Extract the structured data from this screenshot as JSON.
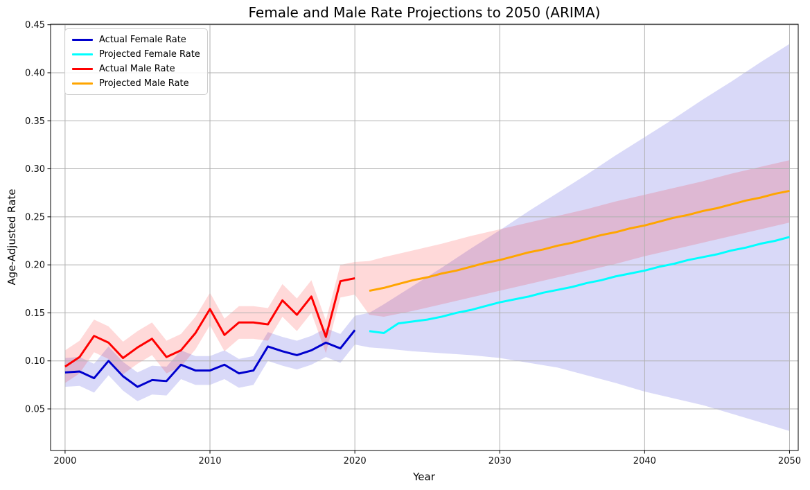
{
  "chart_data": {
    "type": "line",
    "title": "Female and Male Rate Projections to 2050 (ARIMA)",
    "xlabel": "Year",
    "ylabel": "Age-Adjusted Rate",
    "xlim": [
      1999.0,
      2050.6
    ],
    "ylim": [
      0.0067,
      0.4505
    ],
    "x_ticks": [
      2000,
      2010,
      2020,
      2030,
      2040,
      2050
    ],
    "y_ticks": [
      0.05,
      0.1,
      0.15,
      0.2,
      0.25,
      0.3,
      0.35,
      0.4,
      0.45
    ],
    "grid": true,
    "legend_position": "upper-left",
    "colors": {
      "actual_female": "#0000cd",
      "projected_female": "#00ffff",
      "actual_male": "#ff0000",
      "projected_male": "#ffa500",
      "grid": "#b0b0b0",
      "female_band": "#0000cd",
      "male_band": "#ff0000"
    },
    "series": [
      {
        "name": "Actual Female Rate",
        "color": "#0000cd",
        "x": [
          2000,
          2001,
          2002,
          2003,
          2004,
          2005,
          2006,
          2007,
          2008,
          2009,
          2010,
          2011,
          2012,
          2013,
          2014,
          2015,
          2016,
          2017,
          2018,
          2019,
          2020
        ],
        "values": [
          0.088,
          0.089,
          0.082,
          0.1,
          0.084,
          0.073,
          0.08,
          0.079,
          0.096,
          0.09,
          0.09,
          0.096,
          0.087,
          0.09,
          0.115,
          0.11,
          0.106,
          0.111,
          0.119,
          0.113,
          0.132
        ]
      },
      {
        "name": "Projected Female Rate",
        "color": "#00ffff",
        "x": [
          2021,
          2022,
          2023,
          2024,
          2025,
          2026,
          2027,
          2028,
          2029,
          2030,
          2031,
          2032,
          2033,
          2034,
          2035,
          2036,
          2037,
          2038,
          2039,
          2040,
          2041,
          2042,
          2043,
          2044,
          2045,
          2046,
          2047,
          2048,
          2049,
          2050
        ],
        "values": [
          0.131,
          0.129,
          0.139,
          0.141,
          0.143,
          0.146,
          0.15,
          0.153,
          0.157,
          0.161,
          0.164,
          0.167,
          0.171,
          0.174,
          0.177,
          0.181,
          0.184,
          0.188,
          0.191,
          0.194,
          0.198,
          0.201,
          0.205,
          0.208,
          0.211,
          0.215,
          0.218,
          0.222,
          0.225,
          0.229
        ]
      },
      {
        "name": "Actual Male Rate",
        "color": "#ff0000",
        "x": [
          2000,
          2001,
          2002,
          2003,
          2004,
          2005,
          2006,
          2007,
          2008,
          2009,
          2010,
          2011,
          2012,
          2013,
          2014,
          2015,
          2016,
          2017,
          2018,
          2019,
          2020
        ],
        "values": [
          0.094,
          0.104,
          0.126,
          0.119,
          0.103,
          0.114,
          0.123,
          0.104,
          0.111,
          0.129,
          0.154,
          0.127,
          0.14,
          0.14,
          0.138,
          0.163,
          0.148,
          0.167,
          0.125,
          0.183,
          0.186
        ]
      },
      {
        "name": "Projected Male Rate",
        "color": "#ffa500",
        "x": [
          2021,
          2022,
          2023,
          2024,
          2025,
          2026,
          2027,
          2028,
          2029,
          2030,
          2031,
          2032,
          2033,
          2034,
          2035,
          2036,
          2037,
          2038,
          2039,
          2040,
          2041,
          2042,
          2043,
          2044,
          2045,
          2046,
          2047,
          2048,
          2049,
          2050
        ],
        "values": [
          0.173,
          0.176,
          0.18,
          0.184,
          0.187,
          0.191,
          0.194,
          0.198,
          0.202,
          0.205,
          0.209,
          0.213,
          0.216,
          0.22,
          0.223,
          0.227,
          0.231,
          0.234,
          0.238,
          0.241,
          0.245,
          0.249,
          0.252,
          0.256,
          0.259,
          0.263,
          0.267,
          0.27,
          0.274,
          0.277
        ]
      }
    ],
    "bands": [
      {
        "name": "actual-female-ci",
        "series": 0,
        "color": "#0000cd",
        "half_width": 0.015
      },
      {
        "name": "actual-male-ci",
        "series": 2,
        "color": "#ff0000",
        "half_width": 0.017
      },
      {
        "name": "projected-female-ci",
        "color": "#0000cd",
        "x": [
          2020,
          2021,
          2022,
          2024,
          2026,
          2028,
          2030,
          2032,
          2034,
          2036,
          2038,
          2040,
          2042,
          2044,
          2046,
          2048,
          2050
        ],
        "lower": [
          0.117,
          0.114,
          0.113,
          0.11,
          0.108,
          0.106,
          0.103,
          0.098,
          0.093,
          0.085,
          0.077,
          0.068,
          0.061,
          0.054,
          0.045,
          0.036,
          0.027
        ],
        "upper": [
          0.147,
          0.15,
          0.159,
          0.178,
          0.197,
          0.217,
          0.236,
          0.256,
          0.275,
          0.294,
          0.314,
          0.333,
          0.352,
          0.372,
          0.391,
          0.411,
          0.43
        ]
      },
      {
        "name": "projected-male-ci",
        "color": "#ff0000",
        "x": [
          2020,
          2021,
          2022,
          2024,
          2026,
          2028,
          2030,
          2032,
          2034,
          2036,
          2038,
          2040,
          2042,
          2044,
          2046,
          2048,
          2050
        ],
        "lower": [
          0.169,
          0.148,
          0.146,
          0.152,
          0.159,
          0.166,
          0.173,
          0.18,
          0.187,
          0.194,
          0.201,
          0.209,
          0.216,
          0.223,
          0.23,
          0.237,
          0.244
        ],
        "upper": [
          0.203,
          0.204,
          0.208,
          0.215,
          0.222,
          0.23,
          0.237,
          0.244,
          0.251,
          0.258,
          0.266,
          0.273,
          0.28,
          0.287,
          0.295,
          0.302,
          0.309
        ]
      }
    ]
  }
}
